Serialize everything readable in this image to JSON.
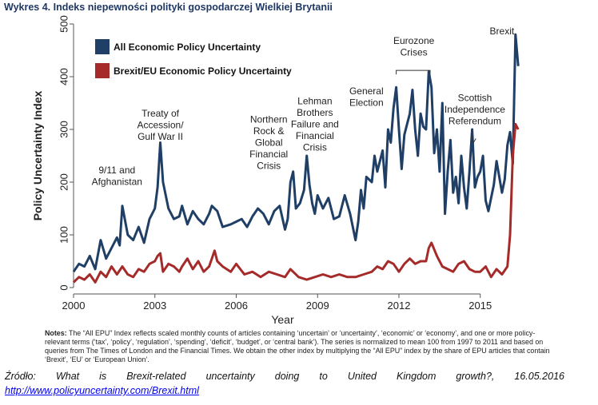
{
  "header": "Wykres 4. Indeks niepewności polityki gospodarczej Wielkiej Brytanii",
  "notes": {
    "label": "Notes:",
    "text": "The “All EPU” Index reflects scaled monthly counts of articles containing ‘uncertain’ or ‘uncertainty’, ‘economic’ or ‘economy’, and one or more policy-relevant terms (‘tax’, ‘policy’, ‘regulation’, ‘spending’, ‘deficit’, ‘budget’, or ‘central bank’). The series is normalized to mean 100 from 1997 to 2011 and based on queries from The Times of London and the Financial Times. We obtain the other index by multiplying the “All EPU” index by the share of EPU articles that contain ‘Brexit’, ‘EU’ or ‘European Union’."
  },
  "source": {
    "words": [
      "Źródło:",
      "What",
      "is",
      "Brexit-related",
      "uncertainty",
      "doing",
      "to",
      "United",
      "Kingdom",
      "growth?,",
      "16.05.2016"
    ],
    "link": "http://www.policyuncertainty.com/Brexit.html"
  },
  "chart_data": {
    "type": "line",
    "xlabel": "Year",
    "ylabel": "Policy Uncertainty Index",
    "xlim": [
      2000,
      2016.6
    ],
    "ylim": [
      0,
      500
    ],
    "xticks": [
      "2000",
      "2003",
      "2006",
      "2009",
      "2012",
      "2015"
    ],
    "yticks": [
      "0",
      "100",
      "200",
      "300",
      "400",
      "500"
    ],
    "grid": false,
    "legend_position": "top-left",
    "colors": {
      "all": "#1F3F66",
      "brexit": "#A52A2A"
    },
    "series": [
      {
        "name": "All Economic Policy Uncertainty",
        "x": [
          2000.0,
          2000.2,
          2000.4,
          2000.6,
          2000.8,
          2001.0,
          2001.2,
          2001.4,
          2001.6,
          2001.7,
          2001.8,
          2002.0,
          2002.2,
          2002.4,
          2002.6,
          2002.8,
          2003.0,
          2003.1,
          2003.2,
          2003.3,
          2003.5,
          2003.7,
          2003.9,
          2004.0,
          2004.2,
          2004.4,
          2004.6,
          2004.8,
          2005.0,
          2005.1,
          2005.3,
          2005.5,
          2005.8,
          2006.0,
          2006.2,
          2006.4,
          2006.6,
          2006.8,
          2007.0,
          2007.2,
          2007.4,
          2007.6,
          2007.8,
          2007.9,
          2008.0,
          2008.1,
          2008.2,
          2008.35,
          2008.5,
          2008.6,
          2008.7,
          2008.8,
          2008.9,
          2009.0,
          2009.2,
          2009.4,
          2009.6,
          2009.8,
          2010.0,
          2010.2,
          2010.4,
          2010.5,
          2010.6,
          2010.7,
          2010.8,
          2011.0,
          2011.1,
          2011.2,
          2011.4,
          2011.5,
          2011.6,
          2011.7,
          2011.8,
          2011.9,
          2012.0,
          2012.1,
          2012.2,
          2012.3,
          2012.4,
          2012.5,
          2012.6,
          2012.7,
          2012.8,
          2012.9,
          2013.0,
          2013.1,
          2013.2,
          2013.3,
          2013.4,
          2013.5,
          2013.6,
          2013.7,
          2013.8,
          2013.9,
          2014.0,
          2014.1,
          2014.2,
          2014.3,
          2014.4,
          2014.5,
          2014.6,
          2014.7,
          2014.8,
          2014.9,
          2015.0,
          2015.1,
          2015.2,
          2015.3,
          2015.4,
          2015.5,
          2015.6,
          2015.7,
          2015.8,
          2015.9,
          2016.0,
          2016.1,
          2016.2,
          2016.3,
          2016.4
        ],
        "values": [
          30,
          45,
          40,
          60,
          35,
          90,
          55,
          75,
          95,
          80,
          155,
          100,
          90,
          115,
          85,
          130,
          150,
          190,
          275,
          200,
          150,
          130,
          135,
          155,
          120,
          145,
          130,
          120,
          140,
          155,
          145,
          115,
          120,
          125,
          130,
          115,
          135,
          150,
          140,
          120,
          145,
          155,
          110,
          130,
          200,
          220,
          150,
          160,
          185,
          250,
          195,
          160,
          140,
          175,
          150,
          170,
          130,
          135,
          175,
          140,
          90,
          125,
          185,
          150,
          210,
          200,
          250,
          220,
          260,
          190,
          300,
          275,
          340,
          380,
          300,
          225,
          290,
          310,
          330,
          375,
          300,
          250,
          330,
          305,
          300,
          410,
          380,
          255,
          300,
          220,
          350,
          140,
          220,
          280,
          180,
          210,
          160,
          250,
          190,
          150,
          220,
          300,
          190,
          210,
          220,
          250,
          165,
          145,
          170,
          195,
          240,
          210,
          180,
          205,
          270,
          295,
          235,
          480,
          420
        ],
        "label_values": false
      },
      {
        "name": "Brexit/EU Economic Policy Uncertainty",
        "x": [
          2000.0,
          2000.2,
          2000.4,
          2000.6,
          2000.8,
          2001.0,
          2001.2,
          2001.4,
          2001.6,
          2001.8,
          2002.0,
          2002.2,
          2002.4,
          2002.6,
          2002.8,
          2003.0,
          2003.1,
          2003.2,
          2003.3,
          2003.5,
          2003.7,
          2003.9,
          2004.0,
          2004.2,
          2004.4,
          2004.6,
          2004.8,
          2005.0,
          2005.2,
          2005.3,
          2005.5,
          2005.8,
          2006.0,
          2006.3,
          2006.6,
          2006.9,
          2007.2,
          2007.5,
          2007.8,
          2008.0,
          2008.3,
          2008.6,
          2008.9,
          2009.2,
          2009.5,
          2009.8,
          2010.1,
          2010.4,
          2010.7,
          2011.0,
          2011.2,
          2011.4,
          2011.6,
          2011.8,
          2012.0,
          2012.2,
          2012.4,
          2012.6,
          2012.8,
          2013.0,
          2013.1,
          2013.2,
          2013.4,
          2013.6,
          2013.8,
          2014.0,
          2014.2,
          2014.4,
          2014.6,
          2014.8,
          2015.0,
          2015.2,
          2015.4,
          2015.6,
          2015.8,
          2016.0,
          2016.1,
          2016.2,
          2016.3,
          2016.4
        ],
        "values": [
          10,
          20,
          15,
          25,
          10,
          30,
          20,
          40,
          25,
          40,
          25,
          20,
          35,
          30,
          45,
          50,
          60,
          65,
          30,
          45,
          40,
          30,
          40,
          55,
          35,
          50,
          30,
          40,
          70,
          50,
          40,
          30,
          45,
          25,
          30,
          20,
          30,
          25,
          20,
          35,
          20,
          15,
          20,
          25,
          20,
          25,
          20,
          20,
          25,
          30,
          40,
          35,
          50,
          45,
          30,
          45,
          55,
          45,
          50,
          50,
          75,
          85,
          60,
          40,
          35,
          30,
          45,
          50,
          35,
          30,
          30,
          40,
          20,
          35,
          25,
          40,
          100,
          250,
          310,
          300
        ],
        "label_values": false
      }
    ],
    "annotations": [
      {
        "text": "9/11 and\nAfghanistan",
        "x": 2001.6,
        "y": 195
      },
      {
        "text": "Treaty of\nAccession/\nGulf War II",
        "x": 2003.2,
        "y": 280
      },
      {
        "text": "Northern\nRock &\nGlobal\nFinancial\nCrisis",
        "x": 2007.2,
        "y": 225
      },
      {
        "text": "Lehman\nBrothers\nFailure and\nFinancial\nCrisis",
        "x": 2008.9,
        "y": 260
      },
      {
        "text": "General\nElection",
        "x": 2010.8,
        "y": 345
      },
      {
        "text": "Eurozone\nCrises",
        "x": 2012.55,
        "y": 440
      },
      {
        "text": "Scottish\nIndependence\nReferendum",
        "x": 2014.8,
        "y": 310
      },
      {
        "text": "Brexit",
        "x": 2015.8,
        "y": 480
      }
    ]
  }
}
